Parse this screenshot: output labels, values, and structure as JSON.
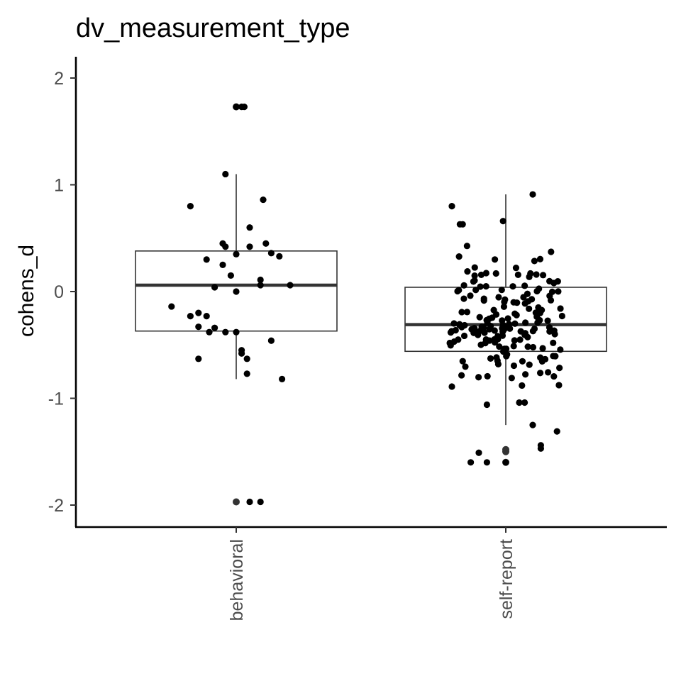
{
  "chart_data": {
    "type": "box",
    "title": "dv_measurement_type",
    "xlabel": "",
    "ylabel": "cohens_d",
    "ylim": [
      -2.2,
      2.2
    ],
    "yticks": [
      -2,
      -1,
      0,
      1,
      2
    ],
    "ytick_labels": [
      "-2",
      "-1",
      "0",
      "1",
      "2"
    ],
    "categories": [
      "behavioral",
      "self-report"
    ],
    "legend": "none",
    "grid": false,
    "boxes": [
      {
        "category": "behavioral",
        "q1": -0.37,
        "median": 0.06,
        "q3": 0.38,
        "whisker_low": -0.82,
        "whisker_high": 1.1,
        "outliers": [
          1.73,
          -1.97
        ]
      },
      {
        "category": "self-report",
        "q1": -0.56,
        "median": -0.31,
        "q3": 0.04,
        "whisker_low": -1.25,
        "whisker_high": 0.91,
        "outliers": [
          -1.48,
          -1.5,
          -1.6
        ]
      }
    ],
    "points": [
      {
        "category": "behavioral",
        "x_offset": [
          0.03,
          0.02,
          0.0,
          -0.04,
          0.1,
          -0.17,
          0.05,
          -0.05,
          0.11,
          -0.04,
          0.05,
          0.0,
          -0.11,
          -0.05,
          -0.02,
          0.09,
          0.09,
          0.2,
          -0.24,
          -0.17,
          -0.11,
          -0.14,
          -0.08,
          0.0,
          -0.04,
          -0.1,
          0.13,
          0.02,
          0.02,
          0.04,
          0.04,
          0.17,
          0.05,
          0.09,
          0.13,
          0.16,
          -0.08,
          0.0,
          -0.14,
          -0.14
        ],
        "y": [
          1.73,
          1.73,
          1.73,
          1.1,
          0.86,
          0.8,
          0.6,
          0.45,
          0.45,
          0.42,
          0.42,
          0.35,
          0.3,
          0.25,
          0.15,
          0.11,
          0.06,
          0.06,
          -0.14,
          -0.23,
          -0.23,
          -0.33,
          -0.34,
          -0.38,
          -0.38,
          -0.38,
          -0.46,
          -0.55,
          -0.58,
          -0.63,
          -0.77,
          -0.82,
          -1.97,
          -1.97,
          0.36,
          0.33,
          0.04,
          0.0,
          -0.2,
          -0.63
        ]
      }
    ]
  }
}
